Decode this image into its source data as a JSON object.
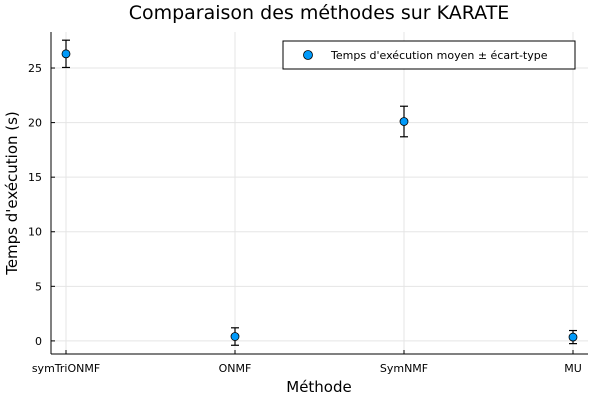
{
  "chart_data": {
    "type": "scatter",
    "title": "Comparaison des méthodes sur KARATE",
    "xlabel": "Méthode",
    "ylabel": "Temps d'exécution (s)",
    "categories": [
      "symTriONMF",
      "ONMF",
      "SymNMF",
      "MU"
    ],
    "series": [
      {
        "name": "Temps d'exécution moyen ± écart-type",
        "values": [
          26.3,
          0.4,
          20.1,
          0.35
        ],
        "errors": [
          1.25,
          0.8,
          1.4,
          0.6
        ],
        "color": "#009AFA"
      }
    ],
    "ylim": [
      -1.2,
      28.3
    ],
    "yticks": [
      0,
      5,
      10,
      15,
      20,
      25
    ],
    "grid": true,
    "legend_position": "top-right"
  }
}
